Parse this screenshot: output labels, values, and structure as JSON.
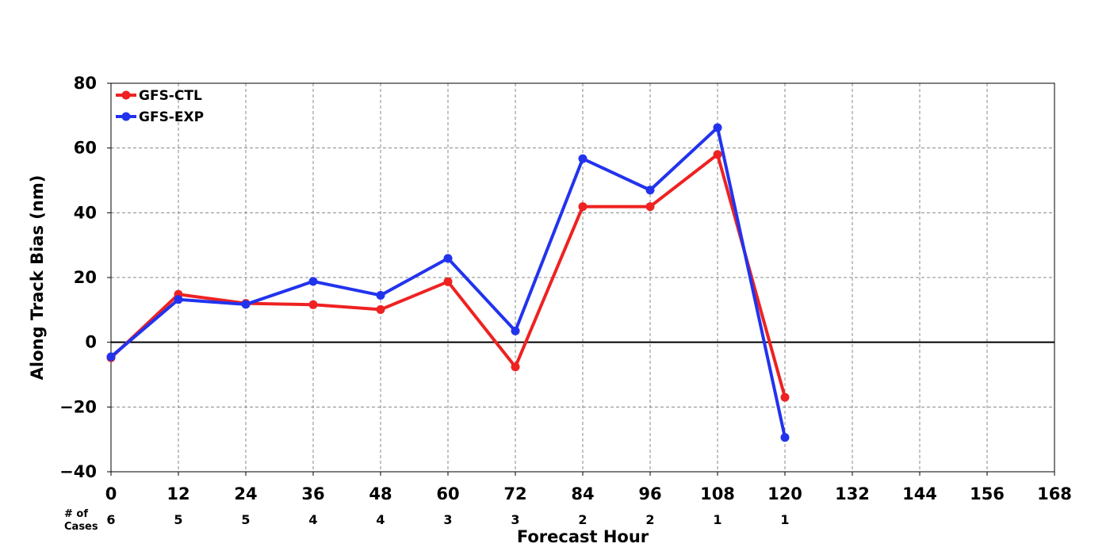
{
  "chart_data": {
    "type": "line",
    "xlabel": "Forecast Hour",
    "ylabel": "Along Track Bias (nm)",
    "xlim": [
      0,
      168
    ],
    "ylim": [
      -40,
      80
    ],
    "x_ticks": [
      0,
      12,
      24,
      36,
      48,
      60,
      72,
      84,
      96,
      108,
      120,
      132,
      144,
      156,
      168
    ],
    "y_ticks": [
      -40,
      -20,
      0,
      20,
      40,
      60,
      80
    ],
    "y_tick_labels": [
      "−40",
      "−20",
      "0",
      "20",
      "40",
      "60",
      "80"
    ],
    "x": [
      0,
      12,
      24,
      36,
      48,
      60,
      72,
      84,
      96,
      108,
      120
    ],
    "series": [
      {
        "name": "GFS-CTL",
        "color": "#ee2222",
        "values": [
          -4.8,
          14.8,
          12.0,
          11.6,
          10.1,
          18.7,
          -7.6,
          41.9,
          41.9,
          58.0,
          -17.0
        ]
      },
      {
        "name": "GFS-EXP",
        "color": "#2233ee",
        "values": [
          -4.5,
          13.2,
          11.7,
          18.8,
          14.5,
          25.9,
          3.5,
          56.7,
          47.0,
          66.3,
          -29.4
        ]
      }
    ],
    "cases_title": "# of\nCases",
    "cases": [
      "6",
      "5",
      "5",
      "4",
      "4",
      "3",
      "3",
      "2",
      "2",
      "1",
      "1"
    ],
    "grid": true,
    "legend_position": "top-left",
    "zero_line": true
  }
}
